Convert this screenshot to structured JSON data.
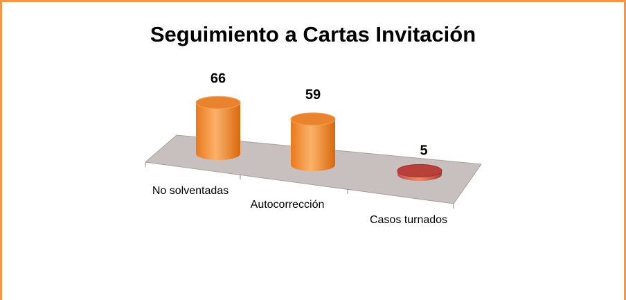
{
  "chart_data": {
    "type": "bar3d",
    "title": "Seguimiento a Cartas Invitación",
    "categories": [
      "No solventadas",
      "Autocorrección",
      "Casos turnados"
    ],
    "values": [
      66,
      59,
      5
    ],
    "colors": [
      "#f79646",
      "#f79646",
      "#c0504d"
    ]
  }
}
